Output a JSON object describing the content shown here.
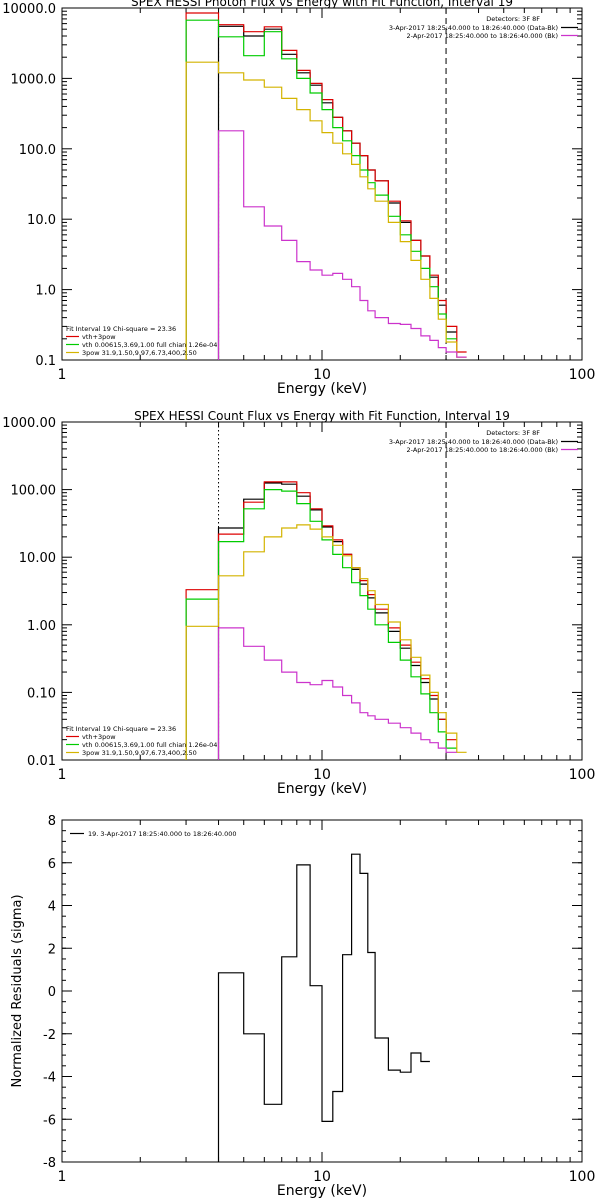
{
  "chart_data": [
    {
      "type": "line",
      "title": "SPEX HESSI Photon Flux vs Energy with Fit Function, Interval 19",
      "xlabel": "Energy (keV)",
      "ylabel": "",
      "xscale": "log",
      "yscale": "log",
      "xlim": [
        1,
        100
      ],
      "ylim": [
        0.1,
        10000
      ],
      "x_ticks": [
        "1",
        "10",
        "100"
      ],
      "y_ticks": [
        "0.1",
        "1.0",
        "10.0",
        "100.0",
        "1000.0",
        "10000.0"
      ],
      "vlines": [
        {
          "x": 4,
          "style": "dotted"
        },
        {
          "x": 30,
          "style": "dashed"
        }
      ],
      "legend_top": {
        "header": "Detectors: 3F 8F",
        "rows": [
          {
            "text": "3-Apr-2017 18:25:40.000 to 18:26:40.000 (Data-Bk)",
            "color": "#000000"
          },
          {
            "text": "2-Apr-2017 18:25:40.000 to 18:26:40.000 (Bk)",
            "color": "#cc33cc"
          }
        ]
      },
      "legend_bottom": {
        "header": "Fit Interval 19   Chi-square = 23.36",
        "rows": [
          {
            "text": "vth+3pow",
            "color": "#dd0000"
          },
          {
            "text": "vth 0.00615,3.69,1.00  full chian 1.26e-04",
            "color": "#00cc00"
          },
          {
            "text": "3pow 31.9,1.50,9.97,6.73,400,2.50",
            "color": "#d4b400"
          }
        ]
      },
      "bin_edges": [
        3,
        4,
        5,
        6,
        7,
        8,
        9,
        10,
        11,
        12,
        13,
        14,
        15,
        16,
        18,
        20,
        22,
        24,
        26,
        28,
        30,
        33,
        36
      ],
      "series": [
        {
          "name": "Data-Bk",
          "color": "#000000",
          "start": 1,
          "values": [
            5500,
            4000,
            5000,
            2200,
            1200,
            800,
            450,
            280,
            180,
            120,
            80,
            50,
            35,
            17,
            9,
            5,
            3,
            1.5,
            0.6,
            0.25
          ]
        },
        {
          "name": "vth+3pow",
          "color": "#dd0000",
          "start": 0,
          "values": [
            8500,
            5800,
            4600,
            5400,
            2500,
            1300,
            850,
            500,
            280,
            180,
            120,
            80,
            50,
            35,
            18,
            9.5,
            5,
            3,
            1.6,
            0.7,
            0.3,
            0.13
          ]
        },
        {
          "name": "vth",
          "color": "#00cc00",
          "start": 0,
          "values": [
            6700,
            3900,
            2100,
            4600,
            1900,
            1000,
            620,
            360,
            200,
            130,
            80,
            50,
            33,
            22,
            11,
            6,
            3.5,
            2,
            1.1,
            0.45,
            0.2
          ]
        },
        {
          "name": "3pow",
          "color": "#d4b400",
          "start": 0,
          "values": [
            1700,
            1200,
            950,
            750,
            520,
            360,
            250,
            170,
            120,
            85,
            60,
            40,
            27,
            18,
            9,
            4.8,
            2.6,
            1.4,
            0.75,
            0.38,
            0.18,
            0.11
          ]
        },
        {
          "name": "Bk",
          "color": "#cc33cc",
          "start": 1,
          "values": [
            180,
            15,
            8,
            5,
            2.5,
            1.9,
            1.6,
            1.7,
            1.4,
            1.1,
            0.7,
            0.5,
            0.4,
            0.33,
            0.32,
            0.28,
            0.22,
            0.19,
            0.15,
            0.13,
            0.11
          ]
        }
      ]
    },
    {
      "type": "line",
      "title": "SPEX HESSI Count Flux vs Energy with Fit Function, Interval 19",
      "xlabel": "Energy (keV)",
      "ylabel": "",
      "xscale": "log",
      "yscale": "log",
      "xlim": [
        1,
        100
      ],
      "ylim": [
        0.01,
        1000
      ],
      "x_ticks": [
        "1",
        "10",
        "100"
      ],
      "y_ticks": [
        "0.01",
        "0.10",
        "1.00",
        "10.00",
        "100.00",
        "1000.00"
      ],
      "vlines": [
        {
          "x": 4,
          "style": "dotted"
        },
        {
          "x": 30,
          "style": "dashed"
        }
      ],
      "legend_top": {
        "header": "Detectors: 3F 8F",
        "rows": [
          {
            "text": "3-Apr-2017 18:25:40.000 to 18:26:40.000 (Data-Bk)",
            "color": "#000000"
          },
          {
            "text": "2-Apr-2017 18:25:40.000 to 18:26:40.000 (Bk)",
            "color": "#cc33cc"
          }
        ]
      },
      "legend_bottom": {
        "header": "Fit Interval 19   Chi-square = 23.36",
        "rows": [
          {
            "text": "vth+3pow",
            "color": "#dd0000"
          },
          {
            "text": "vth 0.00615,3.69,1.00  full chian 1.26e-04",
            "color": "#00cc00"
          },
          {
            "text": "3pow 31.9,1.50,9.97,6.73,400,2.50",
            "color": "#d4b400"
          }
        ]
      },
      "bin_edges": [
        3,
        4,
        5,
        6,
        7,
        8,
        9,
        10,
        11,
        12,
        13,
        14,
        15,
        16,
        18,
        20,
        22,
        24,
        26,
        28,
        30,
        33,
        36
      ],
      "series": [
        {
          "name": "Data-Bk",
          "color": "#000000",
          "start": 1,
          "values": [
            27,
            72,
            125,
            120,
            80,
            50,
            28,
            17,
            11,
            6.6,
            4,
            2.5,
            1.5,
            0.8,
            0.45,
            0.25,
            0.14,
            0.08,
            0.04
          ]
        },
        {
          "name": "vth+3pow",
          "color": "#dd0000",
          "start": 0,
          "values": [
            3.3,
            22,
            65,
            130,
            130,
            90,
            52,
            29,
            18,
            11,
            7,
            4.5,
            2.8,
            1.7,
            0.9,
            0.5,
            0.28,
            0.16,
            0.09,
            0.04,
            0.02
          ]
        },
        {
          "name": "vth",
          "color": "#00cc00",
          "start": 0,
          "values": [
            2.4,
            17,
            52,
            100,
            95,
            62,
            34,
            18,
            11,
            7,
            4.2,
            2.7,
            1.7,
            1,
            0.55,
            0.3,
            0.17,
            0.095,
            0.05,
            0.026,
            0.015
          ]
        },
        {
          "name": "3pow",
          "color": "#d4b400",
          "start": 0,
          "values": [
            0.95,
            5.3,
            12,
            20,
            27,
            30,
            26,
            20,
            15,
            10.5,
            7,
            4.8,
            3.2,
            2,
            1.1,
            0.6,
            0.33,
            0.18,
            0.1,
            0.05,
            0.025,
            0.013
          ]
        },
        {
          "name": "Bk",
          "color": "#cc33cc",
          "start": 1,
          "values": [
            0.9,
            0.48,
            0.3,
            0.2,
            0.14,
            0.13,
            0.15,
            0.12,
            0.09,
            0.07,
            0.05,
            0.045,
            0.04,
            0.035,
            0.03,
            0.025,
            0.02,
            0.018,
            0.015,
            0.013
          ]
        }
      ]
    },
    {
      "type": "line",
      "title": "",
      "xlabel": "Energy (keV)",
      "ylabel": "Normalized Residuals (sigma)",
      "xscale": "log",
      "yscale": "linear",
      "xlim": [
        1,
        100
      ],
      "ylim": [
        -8,
        8
      ],
      "x_ticks": [
        "1",
        "10",
        "100"
      ],
      "y_ticks": [
        "-8",
        "-6",
        "-4",
        "-2",
        "0",
        "2",
        "4",
        "6",
        "8"
      ],
      "legend": {
        "rows": [
          {
            "text": "19.  3-Apr-2017 18:25:40.000 to 18:26:40.000",
            "color": "#000000"
          }
        ]
      },
      "bin_edges": [
        4,
        5,
        6,
        7,
        8,
        9,
        10,
        11,
        12,
        13,
        14,
        15,
        16,
        18,
        20,
        22,
        24,
        26,
        28,
        30
      ],
      "series": [
        {
          "name": "19",
          "color": "#000000",
          "start": 0,
          "values": [
            0.85,
            -2.0,
            -5.3,
            1.6,
            5.9,
            0.25,
            -6.1,
            -4.7,
            1.7,
            6.4,
            5.5,
            1.8,
            -2.2,
            -3.7,
            -3.8,
            -2.9,
            -3.3
          ]
        }
      ]
    }
  ]
}
